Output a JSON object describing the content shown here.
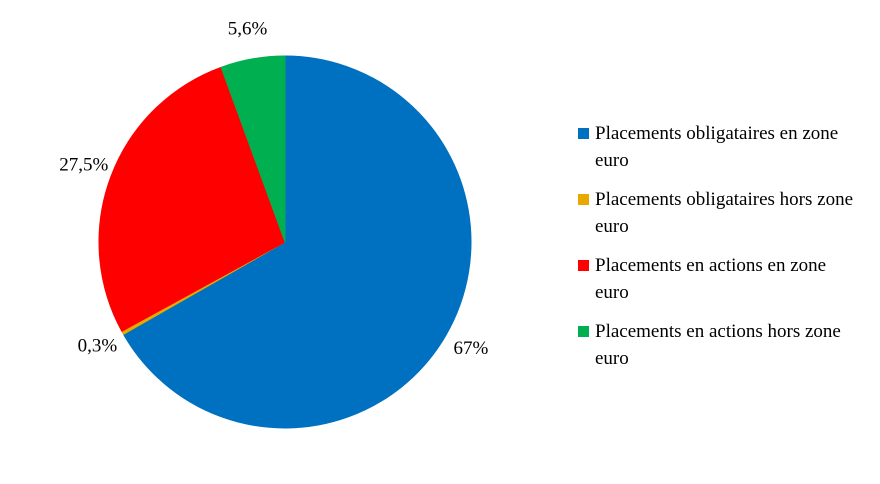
{
  "chart_data": {
    "type": "pie",
    "categories": [
      "Placements obligataires en zone euro",
      "Placements obligataires hors zone euro",
      "Placements en actions en zone euro",
      "Placements en actions hors zone euro"
    ],
    "values": [
      67,
      0.3,
      27.5,
      5.6
    ],
    "value_labels": [
      "67%",
      "0,3%",
      "27,5%",
      "5,6%"
    ],
    "colors": [
      "#0070c0",
      "#e8a800",
      "#ff0000",
      "#00b050"
    ],
    "legend": "right"
  }
}
